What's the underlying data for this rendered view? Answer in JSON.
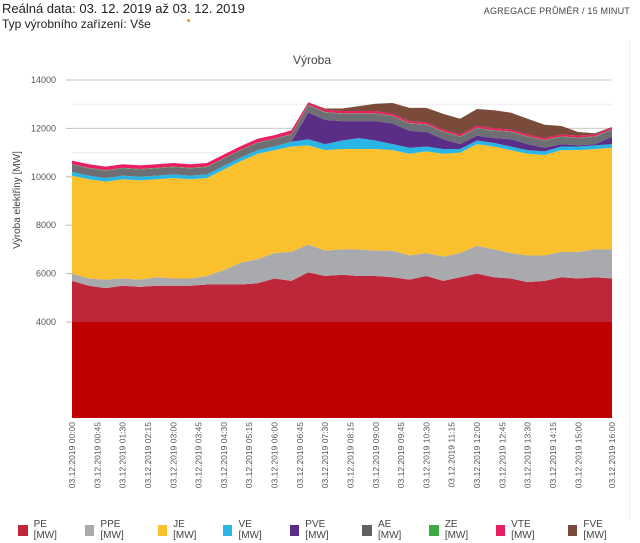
{
  "header": {
    "date_range": "Reálná data: 03. 12. 2019 až 03. 12. 2019",
    "device_type": "Typ výrobního zařízení: Vše",
    "aggregation": "AGREGACE PRŮMĚR / 15 MINUT"
  },
  "chart_data": {
    "type": "area",
    "stacked": true,
    "title": "Výroba",
    "xlabel": "",
    "ylabel": "Výroba elektřiny [MW]",
    "ylim": [
      4000,
      14000
    ],
    "yticks": [
      4000,
      6000,
      8000,
      10000,
      12000,
      14000
    ],
    "grid": true,
    "legend_position": "bottom",
    "xtick_labels": [
      "03.12.2019 00:00",
      "03.12.2019 00:45",
      "03.12.2019 01:30",
      "03.12.2019 02:15",
      "03.12.2019 03:00",
      "03.12.2019 03:45",
      "03.12.2019 04:30",
      "03.12.2019 05:15",
      "03.12.2019 06:00",
      "03.12.2019 06:45",
      "03.12.2019 07:30",
      "03.12.2019 08:15",
      "03.12.2019 09:00",
      "03.12.2019 09:45",
      "03.12.2019 10:30",
      "03.12.2019 11:15",
      "03.12.2019 12:00",
      "03.12.2019 12:45",
      "03.12.2019 13:30",
      "03.12.2019 14:15",
      "03.12.2019 15:00",
      "03.12.2019 16:00"
    ],
    "x": [
      "00:00",
      "00:30",
      "01:00",
      "01:30",
      "02:00",
      "02:30",
      "03:00",
      "03:30",
      "04:00",
      "04:30",
      "05:00",
      "05:30",
      "06:00",
      "06:30",
      "07:00",
      "07:30",
      "08:00",
      "08:30",
      "09:00",
      "09:30",
      "10:00",
      "10:30",
      "11:00",
      "11:30",
      "12:00",
      "12:30",
      "13:00",
      "13:30",
      "14:00",
      "14:30",
      "15:00",
      "15:30",
      "16:00"
    ],
    "series": [
      {
        "name": "PE [MW]",
        "color": "#c0263a",
        "values": [
          5700,
          5500,
          5400,
          5500,
          5450,
          5500,
          5500,
          5500,
          5550,
          5550,
          5550,
          5600,
          5800,
          5700,
          6050,
          5900,
          5950,
          5900,
          5900,
          5850,
          5750,
          5900,
          5700,
          5850,
          6000,
          5850,
          5800,
          5650,
          5700,
          5850,
          5800,
          5850,
          5800
        ]
      },
      {
        "name": "PPE [MW]",
        "color": "#a9aaae",
        "values": [
          300,
          300,
          350,
          300,
          300,
          350,
          300,
          300,
          350,
          600,
          900,
          1000,
          1050,
          1200,
          1150,
          1050,
          1050,
          1100,
          1050,
          1100,
          1000,
          950,
          1000,
          1000,
          1150,
          1150,
          1050,
          1100,
          1050,
          1050,
          1100,
          1150,
          1200
        ]
      },
      {
        "name": "JE [MW]",
        "color": "#fbc02d",
        "values": [
          4050,
          4100,
          4050,
          4100,
          4100,
          4050,
          4150,
          4100,
          4050,
          4150,
          4200,
          4350,
          4250,
          4350,
          4100,
          4150,
          4150,
          4150,
          4200,
          4150,
          4200,
          4200,
          4250,
          4150,
          4200,
          4250,
          4250,
          4200,
          4150,
          4200,
          4200,
          4150,
          4200
        ]
      },
      {
        "name": "VE [MW]",
        "color": "#29b6e6",
        "values": [
          150,
          150,
          150,
          150,
          150,
          150,
          150,
          150,
          150,
          150,
          150,
          150,
          150,
          200,
          250,
          250,
          350,
          450,
          350,
          250,
          250,
          200,
          200,
          150,
          150,
          150,
          150,
          150,
          150,
          150,
          150,
          150,
          150
        ]
      },
      {
        "name": "PVE [MW]",
        "color": "#5a2d86",
        "values": [
          0,
          0,
          0,
          0,
          0,
          0,
          0,
          0,
          0,
          0,
          0,
          0,
          0,
          0,
          1100,
          1000,
          800,
          700,
          800,
          850,
          700,
          600,
          400,
          200,
          200,
          200,
          300,
          250,
          150,
          100,
          50,
          50,
          300
        ]
      },
      {
        "name": "AE [MW]",
        "color": "#6d6f74",
        "values": [
          300,
          300,
          300,
          300,
          300,
          300,
          300,
          300,
          300,
          300,
          300,
          300,
          300,
          300,
          300,
          300,
          300,
          300,
          300,
          300,
          300,
          300,
          300,
          300,
          300,
          300,
          300,
          300,
          300,
          300,
          300,
          300,
          300
        ]
      },
      {
        "name": "ZE [MW]",
        "color": "#3cab45",
        "values": [
          20,
          20,
          20,
          20,
          20,
          20,
          20,
          20,
          20,
          20,
          20,
          20,
          20,
          20,
          20,
          20,
          20,
          20,
          20,
          20,
          20,
          20,
          20,
          20,
          20,
          20,
          20,
          20,
          20,
          20,
          20,
          20,
          20
        ]
      },
      {
        "name": "VTE [MW]",
        "color": "#e91e63",
        "values": [
          150,
          150,
          150,
          150,
          150,
          150,
          150,
          150,
          150,
          150,
          150,
          150,
          150,
          150,
          100,
          100,
          100,
          100,
          100,
          80,
          80,
          80,
          80,
          80,
          80,
          80,
          80,
          80,
          80,
          80,
          80,
          80,
          80
        ]
      },
      {
        "name": "FVE [MW]",
        "color": "#7a4a3a",
        "values": [
          0,
          0,
          0,
          0,
          0,
          0,
          0,
          0,
          0,
          0,
          0,
          0,
          0,
          0,
          10,
          50,
          100,
          200,
          300,
          450,
          550,
          600,
          650,
          650,
          700,
          750,
          700,
          650,
          550,
          350,
          150,
          50,
          10
        ]
      }
    ],
    "overlay": {
      "label": "base band below 4000",
      "color": "#c00000"
    }
  },
  "legend": {
    "items": [
      {
        "label": "PE [MW]",
        "color": "#c0263a"
      },
      {
        "label": "PPE [MW]",
        "color": "#a9aaae"
      },
      {
        "label": "JE [MW]",
        "color": "#fbc02d"
      },
      {
        "label": "VE [MW]",
        "color": "#29b6e6"
      },
      {
        "label": "PVE [MW]",
        "color": "#5a2d86"
      },
      {
        "label": "AE [MW]",
        "color": "#5e5f63"
      },
      {
        "label": "ZE [MW]",
        "color": "#3cab45"
      },
      {
        "label": "VTE [MW]",
        "color": "#e91e63"
      },
      {
        "label": "FVE [MW]",
        "color": "#7a4a3a"
      }
    ]
  }
}
